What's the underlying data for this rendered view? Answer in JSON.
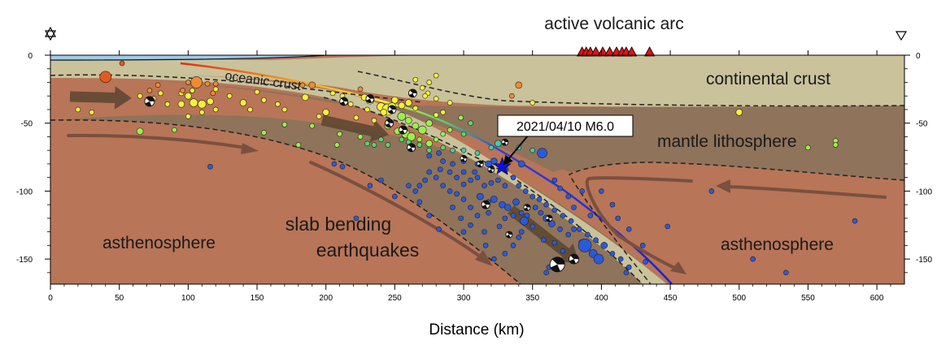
{
  "title": "active volcanic arc",
  "x_axis": {
    "label": "Distance (km)",
    "ticks": [
      0,
      50,
      100,
      150,
      200,
      250,
      300,
      350,
      400,
      450,
      500,
      550,
      600
    ],
    "range": [
      0,
      620
    ]
  },
  "y_axis": {
    "ticks": [
      0,
      -50,
      -100,
      -150
    ],
    "range": [
      -165,
      0
    ]
  },
  "labels": {
    "oceanic_crust": "oceanic crust",
    "continental_crust": "continental crust",
    "mantle_lithosphere": "mantle lithosphere",
    "asthenosphere_left": "asthenosphere",
    "asthenosphere_right": "asthenosphere",
    "slab_line1": "slab bending",
    "slab_line2": "earthquakes"
  },
  "callout": {
    "text": "2021/04/10 M6.0",
    "x": 328,
    "y": -82
  },
  "volcanoes": [
    386,
    389,
    392,
    396,
    401,
    406,
    411,
    415,
    418,
    422,
    435
  ],
  "colors": {
    "asthenosphere": "#b87558",
    "lithosphere": "#8f735a",
    "crust": "#c9c29b",
    "sea": "#9fcbea",
    "volcano": "#e81010",
    "mainshock": "#1010dd",
    "arrow": "#7a5040"
  },
  "earthquakes": [
    [
      40,
      -16,
      7,
      "#e45a20"
    ],
    [
      52,
      -6,
      3,
      "#e45a20"
    ],
    [
      75,
      -32,
      3,
      "#f5e05a"
    ],
    [
      30,
      -42,
      3,
      "#f6f03a"
    ],
    [
      20,
      -40,
      3,
      "#f6f03a"
    ],
    [
      65,
      -30,
      3,
      "#f6f03a"
    ],
    [
      80,
      -28,
      3,
      "#f6f03a"
    ],
    [
      85,
      -36,
      3,
      "#f6f03a"
    ],
    [
      95,
      -28,
      3,
      "#f6f03a"
    ],
    [
      95,
      -36,
      4,
      "#f6f03a"
    ],
    [
      100,
      -30,
      4,
      "#f6f03a"
    ],
    [
      104,
      -35,
      5,
      "#f6f03a"
    ],
    [
      110,
      -36,
      5,
      "#f6f03a"
    ],
    [
      116,
      -34,
      4,
      "#f6f03a"
    ],
    [
      120,
      -40,
      3,
      "#f6f03a"
    ],
    [
      103,
      -26,
      3,
      "#f6f03a"
    ],
    [
      65,
      -56,
      4,
      "#9cf04a"
    ],
    [
      90,
      -55,
      3,
      "#9cf04a"
    ],
    [
      110,
      -42,
      3,
      "#f6f03a"
    ],
    [
      72,
      -26,
      3,
      "#f08b30"
    ],
    [
      78,
      -22,
      3,
      "#f08b30"
    ],
    [
      100,
      -20,
      3,
      "#f08b30"
    ],
    [
      105,
      -21,
      4,
      "#f08b30"
    ],
    [
      106,
      -20,
      7,
      "#f08b30"
    ],
    [
      114,
      -21,
      3,
      "#f08b30"
    ],
    [
      120,
      -21,
      3,
      "#f08b30"
    ],
    [
      96,
      -26,
      3,
      "#f08b30"
    ],
    [
      118,
      -28,
      3,
      "#f08b30"
    ],
    [
      100,
      -45,
      3,
      "#f6f03a"
    ],
    [
      120,
      -25,
      3,
      "#f6f03a"
    ],
    [
      130,
      -30,
      3,
      "#f6f03a"
    ],
    [
      140,
      -35,
      4,
      "#f6f03a"
    ],
    [
      145,
      -40,
      3,
      "#f6f03a"
    ],
    [
      150,
      -27,
      3,
      "#f6f03a"
    ],
    [
      155,
      -33,
      3,
      "#f6f03a"
    ],
    [
      165,
      -36,
      3,
      "#f6f03a"
    ],
    [
      170,
      -40,
      3,
      "#f6f03a"
    ],
    [
      183,
      -22,
      3,
      "#f08b30"
    ],
    [
      190,
      -22,
      4,
      "#f08b30"
    ],
    [
      185,
      -31,
      4,
      "#f6f03a"
    ],
    [
      195,
      -45,
      3,
      "#f6f03a"
    ],
    [
      200,
      -42,
      4,
      "#f6f03a"
    ],
    [
      205,
      -28,
      3,
      "#f6f03a"
    ],
    [
      212,
      -30,
      3,
      "#f6f03a"
    ],
    [
      218,
      -36,
      3,
      "#f6f03a"
    ],
    [
      222,
      -46,
      3,
      "#f6f03a"
    ],
    [
      225,
      -25,
      3,
      "#f08b30"
    ],
    [
      228,
      -31,
      4,
      "#f6f03a"
    ],
    [
      232,
      -33,
      5,
      "#f6f03a"
    ],
    [
      240,
      -38,
      5,
      "#f6f03a"
    ],
    [
      245,
      -40,
      7,
      "#f6f03a"
    ],
    [
      248,
      -38,
      5,
      "#f6f03a"
    ],
    [
      250,
      -33,
      4,
      "#f6f03a"
    ],
    [
      255,
      -37,
      4,
      "#f6f03a"
    ],
    [
      260,
      -35,
      4,
      "#f6f03a"
    ],
    [
      265,
      -39,
      3,
      "#f6f03a"
    ],
    [
      255,
      -45,
      5,
      "#9cf04a"
    ],
    [
      260,
      -48,
      4,
      "#9cf04a"
    ],
    [
      265,
      -52,
      4,
      "#9cf04a"
    ],
    [
      270,
      -55,
      5,
      "#9cf04a"
    ],
    [
      275,
      -50,
      4,
      "#9cf04a"
    ],
    [
      245,
      -52,
      4,
      "#9cf04a"
    ],
    [
      252,
      -56,
      4,
      "#9cf04a"
    ],
    [
      258,
      -58,
      5,
      "#9cf04a"
    ],
    [
      262,
      -60,
      5,
      "#9cf04a"
    ],
    [
      268,
      -62,
      3,
      "#9cf04a"
    ],
    [
      275,
      -65,
      4,
      "#9cf04a"
    ],
    [
      280,
      -62,
      3,
      "#9cf04a"
    ],
    [
      285,
      -58,
      3,
      "#9cf04a"
    ],
    [
      290,
      -55,
      3,
      "#9cf04a"
    ],
    [
      255,
      -62,
      3,
      "#59d66a"
    ],
    [
      260,
      -64,
      3,
      "#59d66a"
    ],
    [
      268,
      -66,
      3,
      "#59d66a"
    ],
    [
      275,
      -70,
      3,
      "#59d66a"
    ],
    [
      285,
      -68,
      3,
      "#59d66a"
    ],
    [
      225,
      -60,
      3,
      "#9cf04a"
    ],
    [
      230,
      -65,
      3,
      "#59d66a"
    ],
    [
      240,
      -62,
      3,
      "#59d66a"
    ],
    [
      235,
      -66,
      3,
      "#59d66a"
    ],
    [
      245,
      -66,
      3,
      "#59d66a"
    ],
    [
      210,
      -58,
      3,
      "#9cf04a"
    ],
    [
      208,
      -66,
      3,
      "#9cf04a"
    ],
    [
      190,
      -52,
      3,
      "#9cf04a"
    ],
    [
      170,
      -51,
      3,
      "#9cf04a"
    ],
    [
      180,
      -66,
      3,
      "#9cf04a"
    ],
    [
      155,
      -57,
      3,
      "#9cf04a"
    ],
    [
      298,
      -46,
      3,
      "#9cf04a"
    ],
    [
      305,
      -50,
      3,
      "#59d66a"
    ],
    [
      300,
      -58,
      3,
      "#59d66a"
    ],
    [
      292,
      -70,
      3,
      "#48c8a8"
    ],
    [
      300,
      -70,
      3,
      "#48c8a8"
    ],
    [
      310,
      -72,
      3,
      "#48c8a8"
    ],
    [
      320,
      -68,
      3,
      "#48c8a8"
    ],
    [
      325,
      -65,
      4,
      "#48c8a8"
    ],
    [
      330,
      -64,
      3,
      "#48c8a8"
    ],
    [
      280,
      -32,
      3,
      "#f6f03a"
    ],
    [
      290,
      -35,
      3,
      "#f6f03a"
    ],
    [
      285,
      -42,
      3,
      "#f6f03a"
    ],
    [
      274,
      -28,
      3,
      "#f6f03a"
    ],
    [
      270,
      -24,
      3,
      "#f6f03a"
    ],
    [
      275,
      -20,
      3,
      "#f6f03a"
    ],
    [
      280,
      -15,
      3,
      "#f6f03a"
    ],
    [
      265,
      -18,
      3,
      "#f6f03a"
    ],
    [
      280,
      -44,
      3,
      "#f6f03a"
    ],
    [
      242,
      -42,
      4,
      "#f6f03a"
    ],
    [
      235,
      -48,
      3,
      "#f6f03a"
    ],
    [
      230,
      -40,
      3,
      "#f6f03a"
    ],
    [
      340,
      -22,
      4,
      "#f08b30"
    ],
    [
      335,
      -30,
      3,
      "#f08b30"
    ],
    [
      350,
      -35,
      3,
      "#f6f03a"
    ],
    [
      272,
      -30,
      3,
      "#f6f03a"
    ],
    [
      350,
      -48,
      3,
      "#f6f03a"
    ],
    [
      500,
      -42,
      4,
      "#f6f03a"
    ],
    [
      570,
      -63,
      3,
      "#9cf04a"
    ],
    [
      570,
      -66,
      3,
      "#9cf04a"
    ],
    [
      550,
      -68,
      3,
      "#9cf04a"
    ],
    [
      360,
      -50,
      3,
      "#9cf04a"
    ],
    [
      340,
      -68,
      3,
      "#48c8a8"
    ],
    [
      350,
      -70,
      3,
      "#48c8a8"
    ],
    [
      357,
      -72,
      6,
      "#2a5adc"
    ],
    [
      342,
      -80,
      4,
      "#2a5adc"
    ],
    [
      330,
      -84,
      4,
      "#2a5adc"
    ],
    [
      322,
      -78,
      4,
      "#2a5adc"
    ],
    [
      318,
      -80,
      4,
      "#2a5adc"
    ],
    [
      310,
      -80,
      3,
      "#2a5adc"
    ],
    [
      300,
      -78,
      3,
      "#2a5adc"
    ],
    [
      292,
      -80,
      3,
      "#2a5adc"
    ],
    [
      285,
      -78,
      3,
      "#2a5adc"
    ],
    [
      282,
      -72,
      3,
      "#2a5adc"
    ],
    [
      275,
      -74,
      3,
      "#2a5adc"
    ],
    [
      283,
      -84,
      3,
      "#2a5adc"
    ],
    [
      290,
      -86,
      3,
      "#2a5adc"
    ],
    [
      295,
      -90,
      3,
      "#2a5adc"
    ],
    [
      300,
      -95,
      3,
      "#2a5adc"
    ],
    [
      305,
      -92,
      3,
      "#2a5adc"
    ],
    [
      310,
      -90,
      3,
      "#2a5adc"
    ],
    [
      315,
      -96,
      3,
      "#2a5adc"
    ],
    [
      320,
      -94,
      3,
      "#2a5adc"
    ],
    [
      325,
      -92,
      3,
      "#2a5adc"
    ],
    [
      330,
      -96,
      3,
      "#2a5adc"
    ],
    [
      312,
      -104,
      4,
      "#2a5adc"
    ],
    [
      318,
      -108,
      3,
      "#2a5adc"
    ],
    [
      322,
      -106,
      4,
      "#2a5adc"
    ],
    [
      328,
      -110,
      4,
      "#2a5adc"
    ],
    [
      332,
      -112,
      4,
      "#2a5adc"
    ],
    [
      338,
      -108,
      4,
      "#2a5adc"
    ],
    [
      342,
      -116,
      3,
      "#2a5adc"
    ],
    [
      346,
      -118,
      3,
      "#2a5adc"
    ],
    [
      352,
      -112,
      3,
      "#2a5adc"
    ],
    [
      356,
      -116,
      3,
      "#2a5adc"
    ],
    [
      360,
      -120,
      4,
      "#2a5adc"
    ],
    [
      364,
      -124,
      4,
      "#2a5adc"
    ],
    [
      370,
      -128,
      3,
      "#2a5adc"
    ],
    [
      376,
      -132,
      3,
      "#2a5adc"
    ],
    [
      380,
      -128,
      3,
      "#2a5adc"
    ],
    [
      386,
      -138,
      4,
      "#2a5adc"
    ],
    [
      388,
      -140,
      8,
      "#2a5adc"
    ],
    [
      394,
      -146,
      5,
      "#2a5adc"
    ],
    [
      398,
      -150,
      6,
      "#2a5adc"
    ],
    [
      380,
      -150,
      4,
      "#2a5adc"
    ],
    [
      372,
      -144,
      3,
      "#2a5adc"
    ],
    [
      366,
      -138,
      3,
      "#2a5adc"
    ],
    [
      358,
      -136,
      3,
      "#2a5adc"
    ],
    [
      350,
      -126,
      3,
      "#2a5adc"
    ],
    [
      344,
      -122,
      5,
      "#2a5adc"
    ],
    [
      336,
      -118,
      3,
      "#2a5adc"
    ],
    [
      330,
      -120,
      3,
      "#2a5adc"
    ],
    [
      326,
      -126,
      3,
      "#2a5adc"
    ],
    [
      318,
      -116,
      3,
      "#2a5adc"
    ],
    [
      310,
      -118,
      3,
      "#2a5adc"
    ],
    [
      305,
      -112,
      3,
      "#2a5adc"
    ],
    [
      300,
      -106,
      3,
      "#2a5adc"
    ],
    [
      295,
      -102,
      3,
      "#2a5adc"
    ],
    [
      290,
      -100,
      3,
      "#2a5adc"
    ],
    [
      285,
      -96,
      3,
      "#2a5adc"
    ],
    [
      280,
      -90,
      3,
      "#2a5adc"
    ],
    [
      275,
      -86,
      3,
      "#2a5adc"
    ],
    [
      272,
      -92,
      3,
      "#2a5adc"
    ],
    [
      268,
      -96,
      3,
      "#2a5adc"
    ],
    [
      265,
      -100,
      3,
      "#2a5adc"
    ],
    [
      260,
      -96,
      3,
      "#2a5adc"
    ],
    [
      300,
      -86,
      3,
      "#2a5adc"
    ],
    [
      308,
      -86,
      3,
      "#2a5adc"
    ],
    [
      336,
      -90,
      3,
      "#2a5adc"
    ],
    [
      340,
      -96,
      3,
      "#2a5adc"
    ],
    [
      345,
      -100,
      3,
      "#2a5adc"
    ],
    [
      350,
      -104,
      3,
      "#2a5adc"
    ],
    [
      355,
      -106,
      3,
      "#2a5adc"
    ],
    [
      360,
      -110,
      3,
      "#2a5adc"
    ],
    [
      366,
      -114,
      3,
      "#2a5adc"
    ],
    [
      372,
      -118,
      3,
      "#2a5adc"
    ],
    [
      378,
      -122,
      3,
      "#2a5adc"
    ],
    [
      384,
      -128,
      3,
      "#2a5adc"
    ],
    [
      390,
      -132,
      3,
      "#2a5adc"
    ],
    [
      396,
      -136,
      3,
      "#2a5adc"
    ],
    [
      402,
      -140,
      4,
      "#2a5adc"
    ],
    [
      408,
      -146,
      3,
      "#2a5adc"
    ],
    [
      414,
      -150,
      3,
      "#2a5adc"
    ],
    [
      420,
      -156,
      3,
      "#2a5adc"
    ],
    [
      418,
      -160,
      3,
      "#2a5adc"
    ],
    [
      362,
      -156,
      3,
      "#2a5adc"
    ],
    [
      360,
      -160,
      3,
      "#2a5adc"
    ],
    [
      342,
      -130,
      3,
      "#2a5adc"
    ],
    [
      340,
      -134,
      3,
      "#2a5adc"
    ],
    [
      336,
      -140,
      3,
      "#2a5adc"
    ],
    [
      330,
      -146,
      3,
      "#2a5adc"
    ],
    [
      322,
      -150,
      3,
      "#2a5adc"
    ],
    [
      316,
      -140,
      3,
      "#2a5adc"
    ],
    [
      315,
      -130,
      3,
      "#2a5adc"
    ],
    [
      305,
      -125,
      3,
      "#2a5adc"
    ],
    [
      298,
      -120,
      3,
      "#2a5adc"
    ],
    [
      292,
      -112,
      3,
      "#2a5adc"
    ],
    [
      300,
      -130,
      3,
      "#2a5adc"
    ],
    [
      282,
      -128,
      3,
      "#2a5adc"
    ],
    [
      275,
      -118,
      3,
      "#2a5adc"
    ],
    [
      268,
      -108,
      3,
      "#2a5adc"
    ],
    [
      250,
      -104,
      3,
      "#2a5adc"
    ],
    [
      240,
      -92,
      3,
      "#2a5adc"
    ],
    [
      232,
      -96,
      3,
      "#2a5adc"
    ],
    [
      212,
      -82,
      3,
      "#2a5adc"
    ],
    [
      206,
      -80,
      3,
      "#2a5adc"
    ],
    [
      116,
      -82,
      3,
      "#2a5adc"
    ],
    [
      222,
      -120,
      3,
      "#2a5adc"
    ],
    [
      400,
      -100,
      3,
      "#2a5adc"
    ],
    [
      408,
      -110,
      3,
      "#2a5adc"
    ],
    [
      412,
      -120,
      3,
      "#2a5adc"
    ],
    [
      420,
      -128,
      3,
      "#2a5adc"
    ],
    [
      430,
      -140,
      3,
      "#2a5adc"
    ],
    [
      380,
      -112,
      3,
      "#2a5adc"
    ],
    [
      376,
      -104,
      3,
      "#2a5adc"
    ],
    [
      370,
      -98,
      3,
      "#2a5adc"
    ],
    [
      366,
      -92,
      3,
      "#2a5adc"
    ],
    [
      584,
      -122,
      3,
      "#2a5adc"
    ],
    [
      510,
      -150,
      3,
      "#2a5adc"
    ],
    [
      534,
      -160,
      3,
      "#2a5adc"
    ],
    [
      480,
      -100,
      3,
      "#2a5adc"
    ],
    [
      448,
      -126,
      3,
      "#2a5adc"
    ],
    [
      432,
      -152,
      3,
      "#2a5adc"
    ],
    [
      392,
      -118,
      3,
      "#2a5adc"
    ],
    [
      386,
      -100,
      3,
      "#2a5adc"
    ]
  ],
  "mechanisms": [
    [
      72,
      -34,
      6
    ],
    [
      213,
      -34,
      5
    ],
    [
      232,
      -32,
      5
    ],
    [
      248,
      -40,
      5
    ],
    [
      246,
      -50,
      5
    ],
    [
      263,
      -28,
      5
    ],
    [
      256,
      -55,
      5
    ],
    [
      262,
      -68,
      5
    ],
    [
      330,
      -64,
      4
    ],
    [
      300,
      -76,
      4
    ],
    [
      312,
      -80,
      4
    ],
    [
      320,
      -84,
      4
    ],
    [
      316,
      -110,
      5
    ],
    [
      333,
      -132,
      4
    ],
    [
      380,
      -150,
      6
    ],
    [
      368,
      -154,
      9
    ],
    [
      362,
      -120,
      4
    ],
    [
      346,
      -112,
      4
    ]
  ]
}
